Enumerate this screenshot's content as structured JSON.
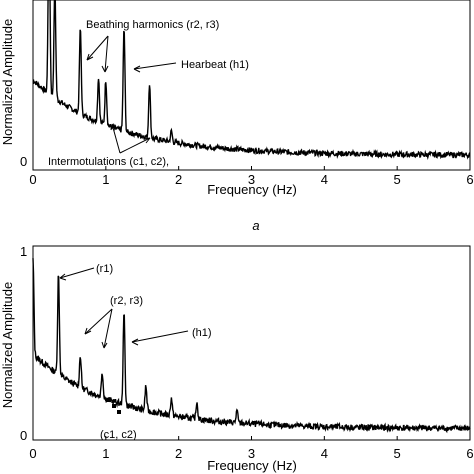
{
  "chart_data": [
    {
      "type": "line",
      "panel_label": "a",
      "xlabel": "Frequency (Hz)",
      "ylabel": "Normalized Amplitude",
      "xlim": [
        0,
        6
      ],
      "ylim": [
        0,
        1
      ],
      "x_ticks": [
        "0",
        "1",
        "2",
        "3",
        "4",
        "5",
        "6"
      ],
      "y_ticks": [
        "0"
      ],
      "grid": false,
      "annotations": [
        {
          "text": "Beathing harmonics (r2, r3)",
          "targets_hz": [
            0.9,
            1.05
          ]
        },
        {
          "text": "Hearbeat (h1)",
          "targets_hz": [
            1.25
          ]
        },
        {
          "text": "Intermotulations (c1, c2),",
          "targets_hz": [
            1.1,
            1.3
          ]
        }
      ],
      "peaks": [
        {
          "x": 0.22,
          "y": 1.6
        },
        {
          "x": 0.3,
          "y": 1.1
        },
        {
          "x": 0.65,
          "y": 0.82
        },
        {
          "x": 0.9,
          "y": 0.52
        },
        {
          "x": 1.0,
          "y": 0.5
        },
        {
          "x": 1.25,
          "y": 0.82
        },
        {
          "x": 1.6,
          "y": 0.48
        },
        {
          "x": 1.9,
          "y": 0.18
        }
      ],
      "noise_floor": {
        "x_start": 0,
        "y_start": 0.5,
        "x_end": 6,
        "y_end": 0.03
      }
    },
    {
      "type": "line",
      "xlabel": "Frequency (Hz)",
      "ylabel": "Normalized Amplitude",
      "xlim": [
        0,
        6
      ],
      "ylim": [
        0,
        1
      ],
      "x_ticks": [
        "0",
        "1",
        "2",
        "3",
        "4",
        "5",
        "6"
      ],
      "y_ticks": [
        "0",
        "1"
      ],
      "grid": false,
      "annotations": [
        {
          "text": "(r1)",
          "targets_hz": [
            0.35
          ]
        },
        {
          "text": "(r2, r3)",
          "targets_hz": [
            0.65,
            0.9
          ]
        },
        {
          "text": "(h1)",
          "targets_hz": [
            1.25
          ]
        },
        {
          "text": "(c1, c2)",
          "targets_hz": [
            1.1,
            1.3
          ]
        }
      ],
      "peaks": [
        {
          "x": 0.0,
          "y": 0.98
        },
        {
          "x": 0.35,
          "y": 0.9
        },
        {
          "x": 0.65,
          "y": 0.44
        },
        {
          "x": 0.95,
          "y": 0.35
        },
        {
          "x": 1.25,
          "y": 0.68
        },
        {
          "x": 1.55,
          "y": 0.27
        },
        {
          "x": 1.9,
          "y": 0.2
        },
        {
          "x": 2.25,
          "y": 0.18
        },
        {
          "x": 2.8,
          "y": 0.13
        }
      ],
      "noise_floor": {
        "x_start": 0,
        "y_start": 0.45,
        "x_end": 6,
        "y_end": 0.03
      }
    }
  ]
}
